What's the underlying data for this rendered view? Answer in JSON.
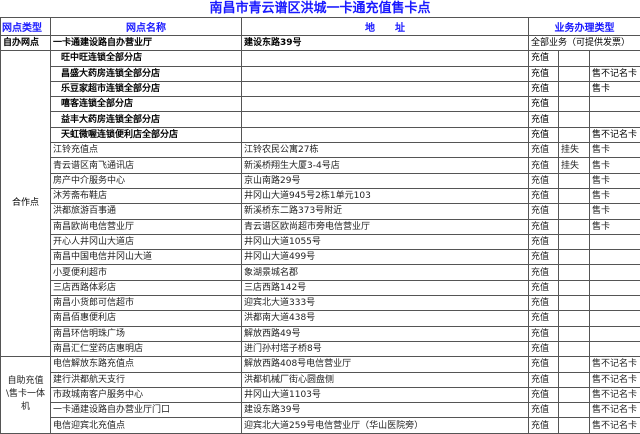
{
  "title": "南昌市青云谱区洪城一卡通充值售卡点",
  "headers": {
    "type": "网点类型",
    "name": "网点名称",
    "address": "地　　址",
    "business": "业务办理类型"
  },
  "self_run": {
    "type": "自办网点",
    "name": "一卡通建设路自办营业厅",
    "address": "建设东路39号",
    "business": "全部业务（可提供发票）"
  },
  "partner_group": "合作点",
  "chains": [
    {
      "name": "旺中旺连锁全部分店",
      "b1": "充值",
      "b2": "",
      "b3": ""
    },
    {
      "name": "昌盛大药房连锁全部分店",
      "b1": "充值",
      "b2": "",
      "b3": "售不记名卡"
    },
    {
      "name": "乐豆家超市连锁全部分店",
      "b1": "充值",
      "b2": "",
      "b3": "售卡"
    },
    {
      "name": "嘻客连锁全部分店",
      "b1": "充值",
      "b2": "",
      "b3": ""
    },
    {
      "name": "益丰大药房连锁全部分店",
      "b1": "充值",
      "b2": "",
      "b3": ""
    },
    {
      "name": "天虹微喔连锁便利店全部分店",
      "b1": "充值",
      "b2": "",
      "b3": "售不记名卡"
    }
  ],
  "partners": [
    {
      "name": "江铃充值点",
      "address": "江铃农民公寓27栋",
      "b1": "充值",
      "b2": "挂失",
      "b3": "售卡"
    },
    {
      "name": "青云谱区南飞通讯店",
      "address": "新溪桥翔生大厦3-4号店",
      "b1": "充值",
      "b2": "挂失",
      "b3": "售卡"
    },
    {
      "name": "房产中介服务中心",
      "address": "京山南路29号",
      "b1": "充值",
      "b2": "",
      "b3": "售卡"
    },
    {
      "name": "沐芳斋布鞋店",
      "address": "井冈山大道945号2栋1单元103",
      "b1": "充值",
      "b2": "",
      "b3": "售卡"
    },
    {
      "name": "洪都旅游百事通",
      "address": "新溪桥东二路373号附近",
      "b1": "充值",
      "b2": "",
      "b3": "售卡"
    },
    {
      "name": "南昌欧尚电信营业厅",
      "address": "青云谱区欧尚超市旁电信营业厅",
      "b1": "充值",
      "b2": "",
      "b3": "售卡"
    },
    {
      "name": "开心人井冈山大道店",
      "address": "井冈山大道1055号",
      "b1": "充值",
      "b2": "",
      "b3": ""
    },
    {
      "name": "南昌中国电信井冈山大道",
      "address": "井冈山大道499号",
      "b1": "充值",
      "b2": "",
      "b3": ""
    },
    {
      "name": "小夏便利超市",
      "address": "象湖景城名郡",
      "b1": "充值",
      "b2": "",
      "b3": ""
    },
    {
      "name": "三店西路体彩店",
      "address": "三店西路142号",
      "b1": "充值",
      "b2": "",
      "b3": ""
    },
    {
      "name": "南昌小货郎可信超市",
      "address": "迎宾北大道333号",
      "b1": "充值",
      "b2": "",
      "b3": ""
    },
    {
      "name": "南昌佰惠便利店",
      "address": "洪都南大道438号",
      "b1": "充值",
      "b2": "",
      "b3": ""
    },
    {
      "name": "南昌环信明珠广场",
      "address": "解放西路49号",
      "b1": "充值",
      "b2": "",
      "b3": ""
    },
    {
      "name": "南昌汇仁堂药店惠明店",
      "address": "进门孙村塔子桥8号",
      "b1": "充值",
      "b2": "",
      "b3": ""
    }
  ],
  "kiosk_group": "自助充值\\售卡一体机",
  "kiosks": [
    {
      "name": "电信解放东路充值点",
      "address": "解放西路408号电信营业厅",
      "b1": "充值",
      "b2": "",
      "b3": "售不记名卡"
    },
    {
      "name": "建行洪都航天支行",
      "address": "洪都机械厂街心圆盘侧",
      "b1": "充值",
      "b2": "",
      "b3": "售不记名卡"
    },
    {
      "name": "市政城南客户服务中心",
      "address": "井冈山大道1103号",
      "b1": "充值",
      "b2": "",
      "b3": "售不记名卡"
    },
    {
      "name": "一卡通建设路自办营业厅门口",
      "address": "建设东路39号",
      "b1": "充值",
      "b2": "",
      "b3": "售不记名卡"
    },
    {
      "name": "电信迎宾北充值点",
      "address": "迎宾北大道259号电信营业厅（华山医院旁）",
      "b1": "充值",
      "b2": "",
      "b3": "售不记名卡"
    }
  ]
}
